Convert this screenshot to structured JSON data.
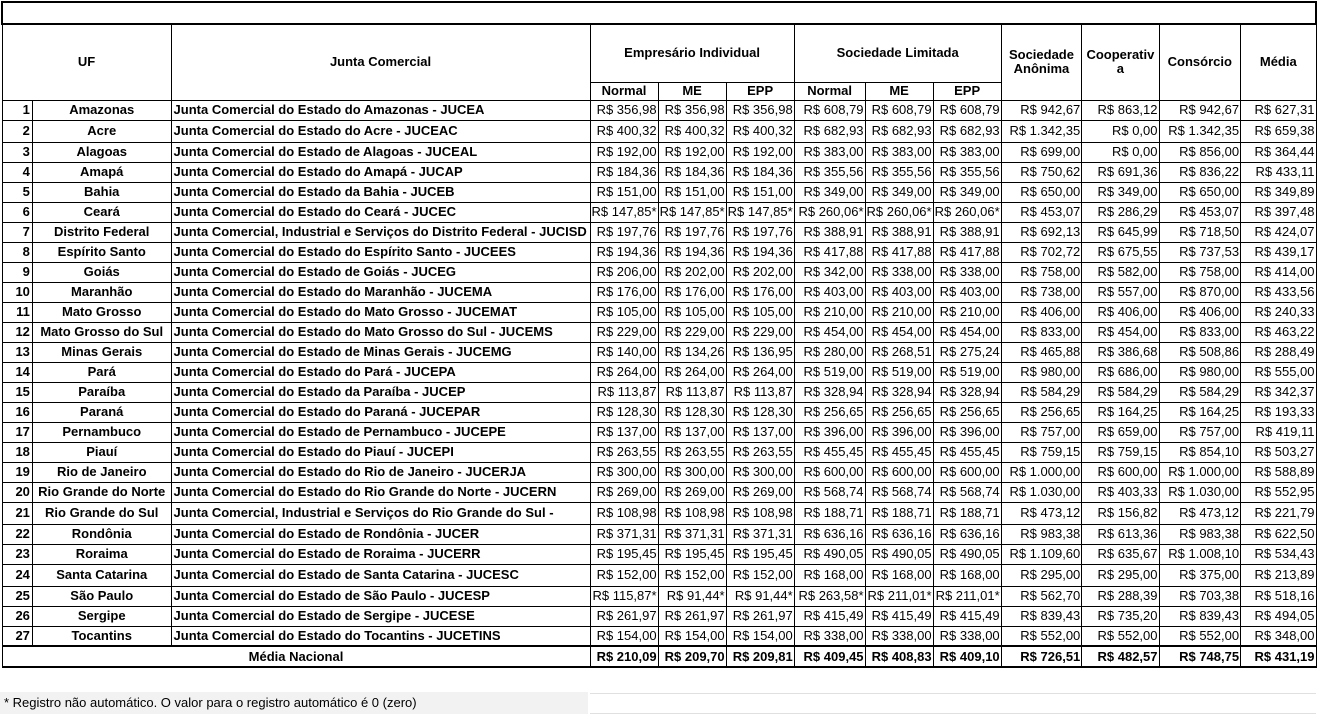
{
  "table": {
    "headers": {
      "num": "",
      "uf": "UF",
      "junta": "Junta Comercial",
      "groups": [
        "Empresário Individual",
        "Sociedade Limitada"
      ],
      "sub": [
        "Normal",
        "ME",
        "EPP",
        "Normal",
        "ME",
        "EPP"
      ],
      "singles": [
        "Sociedade Anônima",
        "Cooperativa",
        "Consórcio",
        "Média"
      ]
    },
    "rows": [
      [
        "1",
        "Amazonas",
        "Junta Comercial do Estado do Amazonas - JUCEA",
        "R$ 356,98",
        "R$ 356,98",
        "R$ 356,98",
        "R$ 608,79",
        "R$ 608,79",
        "R$ 608,79",
        "R$ 942,67",
        "R$ 863,12",
        "R$ 942,67",
        "R$ 627,31"
      ],
      [
        "2",
        "Acre",
        "Junta Comercial do Estado do Acre - JUCEAC",
        "R$ 400,32",
        "R$ 400,32",
        "R$ 400,32",
        "R$ 682,93",
        "R$ 682,93",
        "R$ 682,93",
        "R$ 1.342,35",
        "R$ 0,00",
        "R$ 1.342,35",
        "R$ 659,38"
      ],
      [
        "3",
        "Alagoas",
        "Junta Comercial do Estado de Alagoas - JUCEAL",
        "R$ 192,00",
        "R$ 192,00",
        "R$ 192,00",
        "R$ 383,00",
        "R$ 383,00",
        "R$ 383,00",
        "R$ 699,00",
        "R$ 0,00",
        "R$ 856,00",
        "R$ 364,44"
      ],
      [
        "4",
        "Amapá",
        "Junta Comercial do Estado do Amapá - JUCAP",
        "R$ 184,36",
        "R$ 184,36",
        "R$ 184,36",
        "R$ 355,56",
        "R$ 355,56",
        "R$ 355,56",
        "R$ 750,62",
        "R$ 691,36",
        "R$ 836,22",
        "R$ 433,11"
      ],
      [
        "5",
        "Bahia",
        "Junta Comercial do Estado da Bahia - JUCEB",
        "R$ 151,00",
        "R$ 151,00",
        "R$ 151,00",
        "R$ 349,00",
        "R$ 349,00",
        "R$ 349,00",
        "R$ 650,00",
        "R$ 349,00",
        "R$ 650,00",
        "R$ 349,89"
      ],
      [
        "6",
        "Ceará",
        "Junta Comercial do Estado do Ceará - JUCEC",
        "R$ 147,85*",
        "R$ 147,85*",
        "R$ 147,85*",
        "R$ 260,06*",
        "R$ 260,06*",
        "R$ 260,06*",
        "R$ 453,07",
        "R$ 286,29",
        "R$ 453,07",
        "R$ 397,48"
      ],
      [
        "7",
        "Distrito Federal",
        "Junta Comercial, Industrial e Serviços do Distrito Federal - JUCISD",
        "R$ 197,76",
        "R$ 197,76",
        "R$ 197,76",
        "R$ 388,91",
        "R$ 388,91",
        "R$ 388,91",
        "R$ 692,13",
        "R$ 645,99",
        "R$ 718,50",
        "R$ 424,07"
      ],
      [
        "8",
        "Espírito Santo",
        "Junta Comercial do Estado do Espírito Santo - JUCEES",
        "R$ 194,36",
        "R$ 194,36",
        "R$ 194,36",
        "R$ 417,88",
        "R$ 417,88",
        "R$ 417,88",
        "R$ 702,72",
        "R$ 675,55",
        "R$ 737,53",
        "R$ 439,17"
      ],
      [
        "9",
        "Goiás",
        "Junta Comercial do Estado de Goiás - JUCEG",
        "R$ 206,00",
        "R$ 202,00",
        "R$ 202,00",
        "R$ 342,00",
        "R$ 338,00",
        "R$ 338,00",
        "R$ 758,00",
        "R$ 582,00",
        "R$ 758,00",
        "R$ 414,00"
      ],
      [
        "10",
        "Maranhão",
        "Junta Comercial do Estado do Maranhão - JUCEMA",
        "R$ 176,00",
        "R$ 176,00",
        "R$ 176,00",
        "R$ 403,00",
        "R$ 403,00",
        "R$ 403,00",
        "R$ 738,00",
        "R$ 557,00",
        "R$ 870,00",
        "R$ 433,56"
      ],
      [
        "11",
        "Mato Grosso",
        "Junta Comercial do Estado do Mato Grosso - JUCEMAT",
        "R$ 105,00",
        "R$ 105,00",
        "R$ 105,00",
        "R$ 210,00",
        "R$ 210,00",
        "R$ 210,00",
        "R$ 406,00",
        "R$ 406,00",
        "R$ 406,00",
        "R$ 240,33"
      ],
      [
        "12",
        "Mato Grosso do Sul",
        "Junta Comercial do Estado do Mato Grosso do Sul - JUCEMS",
        "R$ 229,00",
        "R$ 229,00",
        "R$ 229,00",
        "R$ 454,00",
        "R$ 454,00",
        "R$ 454,00",
        "R$ 833,00",
        "R$ 454,00",
        "R$ 833,00",
        "R$ 463,22"
      ],
      [
        "13",
        "Minas Gerais",
        "Junta Comercial do Estado de Minas Gerais - JUCEMG",
        "R$ 140,00",
        "R$ 134,26",
        "R$ 136,95",
        "R$ 280,00",
        "R$ 268,51",
        "R$ 275,24",
        "R$ 465,88",
        "R$ 386,68",
        "R$ 508,86",
        "R$ 288,49"
      ],
      [
        "14",
        "Pará",
        "Junta Comercial do Estado do Pará - JUCEPA",
        "R$ 264,00",
        "R$ 264,00",
        "R$ 264,00",
        "R$ 519,00",
        "R$ 519,00",
        "R$ 519,00",
        "R$ 980,00",
        "R$ 686,00",
        "R$ 980,00",
        "R$ 555,00"
      ],
      [
        "15",
        "Paraíba",
        "Junta Comercial do Estado da Paraíba - JUCEP",
        "R$ 113,87",
        "R$ 113,87",
        "R$ 113,87",
        "R$ 328,94",
        "R$ 328,94",
        "R$ 328,94",
        "R$ 584,29",
        "R$ 584,29",
        "R$ 584,29",
        "R$ 342,37"
      ],
      [
        "16",
        "Paraná",
        "Junta Comercial do Estado do Paraná - JUCEPAR",
        "R$ 128,30",
        "R$ 128,30",
        "R$ 128,30",
        "R$ 256,65",
        "R$ 256,65",
        "R$ 256,65",
        "R$ 256,65",
        "R$ 164,25",
        "R$ 164,25",
        "R$ 193,33"
      ],
      [
        "17",
        "Pernambuco",
        "Junta Comercial do Estado de Pernambuco - JUCEPE",
        "R$ 137,00",
        "R$ 137,00",
        "R$ 137,00",
        "R$ 396,00",
        "R$ 396,00",
        "R$ 396,00",
        "R$ 757,00",
        "R$ 659,00",
        "R$ 757,00",
        "R$ 419,11"
      ],
      [
        "18",
        "Piauí",
        "Junta Comercial do Estado do Piauí - JUCEPI",
        "R$ 263,55",
        "R$ 263,55",
        "R$ 263,55",
        "R$ 455,45",
        "R$ 455,45",
        "R$ 455,45",
        "R$ 759,15",
        "R$ 759,15",
        "R$ 854,10",
        "R$ 503,27"
      ],
      [
        "19",
        "Rio de Janeiro",
        "Junta Comercial do Estado do Rio de Janeiro - JUCERJA",
        "R$ 300,00",
        "R$ 300,00",
        "R$ 300,00",
        "R$ 600,00",
        "R$ 600,00",
        "R$ 600,00",
        "R$ 1.000,00",
        "R$ 600,00",
        "R$ 1.000,00",
        "R$ 588,89"
      ],
      [
        "20",
        "Rio Grande do Norte",
        "Junta Comercial do Estado do Rio Grande do Norte - JUCERN",
        "R$ 269,00",
        "R$ 269,00",
        "R$ 269,00",
        "R$ 568,74",
        "R$ 568,74",
        "R$ 568,74",
        "R$ 1.030,00",
        "R$ 403,33",
        "R$ 1.030,00",
        "R$ 552,95"
      ],
      [
        "21",
        "Rio Grande do Sul",
        "Junta Comercial, Industrial e Serviços do Rio Grande do Sul -",
        "R$ 108,98",
        "R$ 108,98",
        "R$ 108,98",
        "R$ 188,71",
        "R$ 188,71",
        "R$ 188,71",
        "R$ 473,12",
        "R$ 156,82",
        "R$ 473,12",
        "R$ 221,79"
      ],
      [
        "22",
        "Rondônia",
        "Junta Comercial do Estado de Rondônia - JUCER",
        "R$ 371,31",
        "R$ 371,31",
        "R$ 371,31",
        "R$ 636,16",
        "R$ 636,16",
        "R$ 636,16",
        "R$ 983,38",
        "R$ 613,36",
        "R$ 983,38",
        "R$ 622,50"
      ],
      [
        "23",
        "Roraima",
        "Junta Comercial do Estado de Roraima - JUCERR",
        "R$ 195,45",
        "R$ 195,45",
        "R$ 195,45",
        "R$ 490,05",
        "R$ 490,05",
        "R$ 490,05",
        "R$ 1.109,60",
        "R$ 635,67",
        "R$ 1.008,10",
        "R$ 534,43"
      ],
      [
        "24",
        "Santa Catarina",
        "Junta Comercial do Estado de Santa Catarina - JUCESC",
        "R$ 152,00",
        "R$ 152,00",
        "R$ 152,00",
        "R$ 168,00",
        "R$ 168,00",
        "R$ 168,00",
        "R$ 295,00",
        "R$ 295,00",
        "R$ 375,00",
        "R$ 213,89"
      ],
      [
        "25",
        "São Paulo",
        "Junta Comercial do Estado de São Paulo - JUCESP",
        "R$ 115,87*",
        "R$ 91,44*",
        "R$ 91,44*",
        "R$ 263,58*",
        "R$ 211,01*",
        "R$ 211,01*",
        "R$ 562,70",
        "R$ 288,39",
        "R$ 703,38",
        "R$ 518,16"
      ],
      [
        "26",
        "Sergipe",
        "Junta Comercial do Estado de Sergipe - JUCESE",
        "R$ 261,97",
        "R$ 261,97",
        "R$ 261,97",
        "R$ 415,49",
        "R$ 415,49",
        "R$ 415,49",
        "R$ 839,43",
        "R$ 735,20",
        "R$ 839,43",
        "R$ 494,05"
      ],
      [
        "27",
        "Tocantins",
        "Junta Comercial do Estado do Tocantins - JUCETINS",
        "R$ 154,00",
        "R$ 154,00",
        "R$ 154,00",
        "R$ 338,00",
        "R$ 338,00",
        "R$ 338,00",
        "R$ 552,00",
        "R$ 552,00",
        "R$ 552,00",
        "R$ 348,00"
      ]
    ],
    "footer": [
      "Média Nacional",
      "R$ 210,09",
      "R$ 209,70",
      "R$ 209,81",
      "R$ 409,45",
      "R$ 408,83",
      "R$ 409,10",
      "R$ 726,51",
      "R$ 482,57",
      "R$ 748,75",
      "R$ 431,19"
    ],
    "footnote": "* Registro não automático. O valor para o registro automático é 0 (zero)"
  }
}
